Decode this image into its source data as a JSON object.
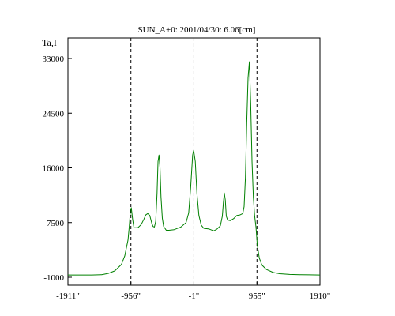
{
  "chart_data": {
    "type": "line",
    "title": "SUN_A+0: 2001/04/30: 6.06[cm]",
    "ylabel": "Ta,I",
    "xlabel": "",
    "xlim": [
      -1911,
      1910
    ],
    "ylim": [
      -1000,
      34000
    ],
    "x_ticks": [
      {
        "value": -1911,
        "label": "-1911\""
      },
      {
        "value": -956,
        "label": "-956\""
      },
      {
        "value": -1,
        "label": "-1\""
      },
      {
        "value": 955,
        "label": "955\""
      },
      {
        "value": 1910,
        "label": "1910\""
      }
    ],
    "y_ticks": [
      {
        "value": -1000,
        "label": "-1000"
      },
      {
        "value": 7500,
        "label": "7500"
      },
      {
        "value": 16000,
        "label": "16000"
      },
      {
        "value": 24500,
        "label": "24500"
      },
      {
        "value": 33000,
        "label": "33000"
      }
    ],
    "vlines": [
      -956,
      -1,
      955
    ],
    "grid": false,
    "series": [
      {
        "color": "#008000",
        "points": [
          [
            -1911,
            -650
          ],
          [
            -1750,
            -650
          ],
          [
            -1550,
            -650
          ],
          [
            -1400,
            -600
          ],
          [
            -1300,
            -400
          ],
          [
            -1200,
            0
          ],
          [
            -1100,
            1000
          ],
          [
            -1050,
            2300
          ],
          [
            -1000,
            4800
          ],
          [
            -980,
            7000
          ],
          [
            -963,
            9400
          ],
          [
            -950,
            9800
          ],
          [
            -930,
            8000
          ],
          [
            -910,
            6700
          ],
          [
            -880,
            6700
          ],
          [
            -850,
            6700
          ],
          [
            -800,
            7200
          ],
          [
            -760,
            8000
          ],
          [
            -730,
            8700
          ],
          [
            -700,
            8900
          ],
          [
            -670,
            8600
          ],
          [
            -640,
            7400
          ],
          [
            -620,
            6900
          ],
          [
            -600,
            6800
          ],
          [
            -580,
            7700
          ],
          [
            -560,
            12000
          ],
          [
            -545,
            17000
          ],
          [
            -530,
            18000
          ],
          [
            -515,
            16000
          ],
          [
            -500,
            11500
          ],
          [
            -480,
            8200
          ],
          [
            -460,
            6900
          ],
          [
            -420,
            6300
          ],
          [
            -380,
            6300
          ],
          [
            -300,
            6400
          ],
          [
            -200,
            6800
          ],
          [
            -120,
            7500
          ],
          [
            -80,
            9000
          ],
          [
            -50,
            13000
          ],
          [
            -20,
            18000
          ],
          [
            -5,
            18700
          ],
          [
            20,
            17000
          ],
          [
            45,
            12000
          ],
          [
            75,
            8600
          ],
          [
            110,
            7100
          ],
          [
            150,
            6600
          ],
          [
            230,
            6500
          ],
          [
            300,
            6200
          ],
          [
            350,
            6500
          ],
          [
            400,
            7000
          ],
          [
            430,
            8500
          ],
          [
            445,
            10500
          ],
          [
            460,
            12100
          ],
          [
            475,
            11000
          ],
          [
            490,
            8500
          ],
          [
            510,
            7900
          ],
          [
            550,
            7800
          ],
          [
            600,
            8100
          ],
          [
            650,
            8600
          ],
          [
            700,
            8700
          ],
          [
            740,
            8900
          ],
          [
            760,
            10000
          ],
          [
            780,
            14500
          ],
          [
            800,
            23000
          ],
          [
            820,
            30000
          ],
          [
            840,
            32500
          ],
          [
            860,
            26000
          ],
          [
            880,
            17000
          ],
          [
            900,
            11500
          ],
          [
            920,
            8500
          ],
          [
            940,
            6800
          ],
          [
            960,
            4000
          ],
          [
            990,
            2000
          ],
          [
            1030,
            900
          ],
          [
            1100,
            200
          ],
          [
            1200,
            -250
          ],
          [
            1300,
            -450
          ],
          [
            1450,
            -550
          ],
          [
            1600,
            -600
          ],
          [
            1750,
            -620
          ],
          [
            1910,
            -650
          ]
        ]
      }
    ]
  }
}
